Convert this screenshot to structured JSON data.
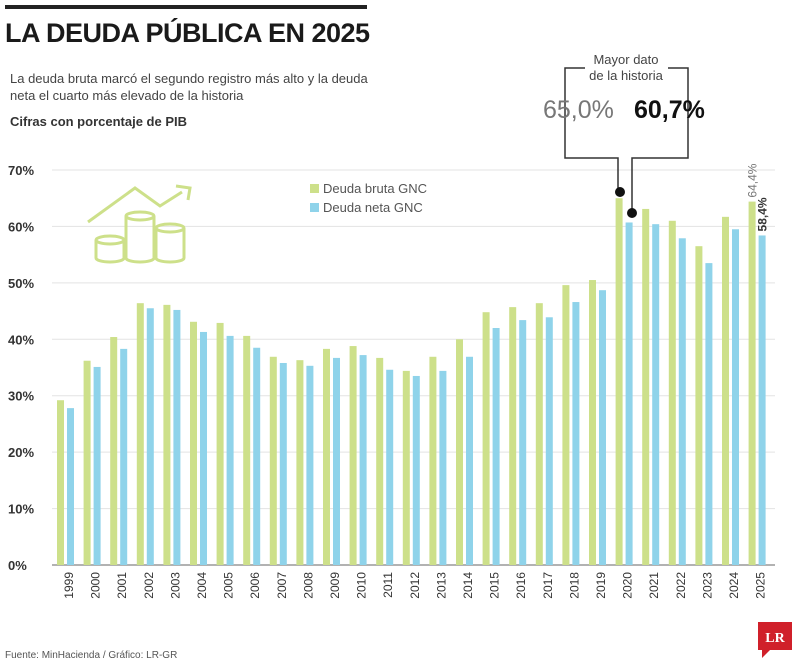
{
  "header": {
    "title": "LA DEUDA PÚBLICA EN 2025",
    "subtitle": "La deuda bruta marcó el segundo registro más alto y la deuda neta el cuarto más elevado de la historia",
    "units": "Cifras con porcentaje de PIB"
  },
  "annotation": {
    "text_line1": "Mayor dato",
    "text_line2": "de la historia",
    "bruta_value": "65,0%",
    "neta_value": "60,7%"
  },
  "footer": {
    "source": "Fuente: MinHacienda / Gráfico: LR-GR",
    "logo": "LR"
  },
  "colors": {
    "bruta": "#cde08a",
    "neta": "#8fd3ea",
    "logo": "#d0202a"
  },
  "chart_data": {
    "type": "bar",
    "categories": [
      "1999",
      "2000",
      "2001",
      "2002",
      "2003",
      "2004",
      "2005",
      "2006",
      "2007",
      "2008",
      "2009",
      "2010",
      "2011",
      "2012",
      "2013",
      "2014",
      "2015",
      "2016",
      "2017",
      "2018",
      "2019",
      "2020",
      "2021",
      "2022",
      "2023",
      "2024",
      "2025"
    ],
    "series": [
      {
        "name": "Deuda bruta GNC",
        "values": [
          29.2,
          36.2,
          40.4,
          46.4,
          46.1,
          43.1,
          42.9,
          40.6,
          36.9,
          36.3,
          38.3,
          38.8,
          36.7,
          34.4,
          36.9,
          40.0,
          44.8,
          45.7,
          46.4,
          49.6,
          50.5,
          65.0,
          63.1,
          61.0,
          56.5,
          61.7,
          64.4
        ]
      },
      {
        "name": "Deuda neta GNC",
        "values": [
          27.8,
          35.1,
          38.3,
          45.5,
          45.2,
          41.3,
          40.6,
          38.5,
          35.8,
          35.3,
          36.7,
          37.2,
          34.6,
          33.5,
          34.4,
          36.9,
          42.0,
          43.4,
          43.9,
          46.6,
          48.7,
          60.7,
          60.4,
          57.9,
          53.5,
          59.5,
          58.4
        ]
      }
    ],
    "yticks": [
      "0%",
      "10%",
      "20%",
      "30%",
      "40%",
      "50%",
      "60%",
      "70%"
    ],
    "ylim": [
      0,
      70
    ],
    "grid": true,
    "legend": "top-left",
    "data_labels": {
      "bruta_2025": "64,4%",
      "neta_2025": "58,4%"
    }
  }
}
